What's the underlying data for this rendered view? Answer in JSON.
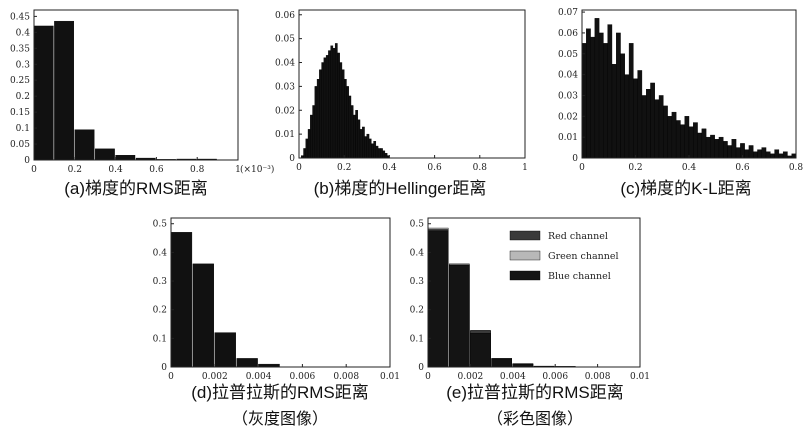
{
  "chart_data": [
    {
      "id": "a",
      "type": "bar",
      "caption": "(a)梯度的RMS距离",
      "x_ticks": [
        "0",
        "0.2",
        "0.4",
        "0.6",
        "0.8",
        "1"
      ],
      "y_ticks": [
        "0",
        "0.05",
        "0.1",
        "0.15",
        "0.2",
        "0.25",
        "0.3",
        "0.35",
        "0.4",
        "0.45"
      ],
      "x_exponent": "(×10⁻³)",
      "xlim": [
        0,
        1
      ],
      "ylim": [
        0,
        0.47
      ],
      "bin_width": 0.1,
      "bins": [
        0.05,
        0.15,
        0.25,
        0.35,
        0.45,
        0.55,
        0.65,
        0.75,
        0.85,
        0.95
      ],
      "values": [
        0.42,
        0.435,
        0.095,
        0.035,
        0.015,
        0.006,
        0.002,
        0.003,
        0.003,
        0.001
      ]
    },
    {
      "id": "b",
      "type": "bar",
      "caption": "(b)梯度的Hellinger距离",
      "x_ticks": [
        "0",
        "0.2",
        "0.4",
        "0.6",
        "0.8",
        "1"
      ],
      "y_ticks": [
        "0",
        "0.01",
        "0.02",
        "0.03",
        "0.04",
        "0.05",
        "0.06"
      ],
      "xlim": [
        0,
        1
      ],
      "ylim": [
        0,
        0.062
      ],
      "bin_width": 0.01,
      "bins": [
        0.015,
        0.025,
        0.035,
        0.045,
        0.055,
        0.065,
        0.075,
        0.085,
        0.095,
        0.105,
        0.115,
        0.125,
        0.135,
        0.145,
        0.155,
        0.165,
        0.175,
        0.185,
        0.195,
        0.205,
        0.215,
        0.225,
        0.235,
        0.245,
        0.255,
        0.265,
        0.275,
        0.285,
        0.295,
        0.305,
        0.315,
        0.325,
        0.335,
        0.345,
        0.355,
        0.365,
        0.375,
        0.385,
        0.395
      ],
      "values": [
        0.001,
        0.004,
        0.008,
        0.012,
        0.018,
        0.022,
        0.03,
        0.033,
        0.037,
        0.04,
        0.042,
        0.043,
        0.045,
        0.047,
        0.046,
        0.048,
        0.044,
        0.04,
        0.037,
        0.033,
        0.03,
        0.026,
        0.022,
        0.018,
        0.02,
        0.016,
        0.012,
        0.013,
        0.009,
        0.01,
        0.008,
        0.006,
        0.007,
        0.005,
        0.004,
        0.004,
        0.003,
        0.002,
        0.001
      ]
    },
    {
      "id": "c",
      "type": "bar",
      "caption": "(c)梯度的K-L距离",
      "x_ticks": [
        "0",
        "0.2",
        "0.4",
        "0.6",
        "0.8"
      ],
      "y_ticks": [
        "0",
        "0.01",
        "0.02",
        "0.03",
        "0.04",
        "0.05",
        "0.06",
        "0.07"
      ],
      "xlim": [
        0,
        0.8
      ],
      "ylim": [
        0,
        0.071
      ],
      "bin_width": 0.016,
      "bins": [
        0.008,
        0.024,
        0.04,
        0.056,
        0.072,
        0.088,
        0.104,
        0.12,
        0.136,
        0.152,
        0.168,
        0.184,
        0.2,
        0.216,
        0.232,
        0.248,
        0.264,
        0.28,
        0.296,
        0.312,
        0.328,
        0.344,
        0.36,
        0.376,
        0.392,
        0.408,
        0.424,
        0.44,
        0.456,
        0.472,
        0.488,
        0.504,
        0.52,
        0.536,
        0.552,
        0.568,
        0.584,
        0.6,
        0.616,
        0.632,
        0.648,
        0.664,
        0.68,
        0.696,
        0.712,
        0.728,
        0.744,
        0.76,
        0.776,
        0.792
      ],
      "values": [
        0.055,
        0.062,
        0.058,
        0.067,
        0.06,
        0.055,
        0.064,
        0.045,
        0.06,
        0.05,
        0.04,
        0.055,
        0.038,
        0.042,
        0.03,
        0.033,
        0.036,
        0.028,
        0.03,
        0.025,
        0.02,
        0.022,
        0.018,
        0.016,
        0.02,
        0.015,
        0.017,
        0.012,
        0.014,
        0.01,
        0.011,
        0.009,
        0.01,
        0.008,
        0.006,
        0.009,
        0.005,
        0.007,
        0.004,
        0.006,
        0.003,
        0.004,
        0.005,
        0.003,
        0.002,
        0.004,
        0.002,
        0.003,
        0.001,
        0.002
      ]
    },
    {
      "id": "d",
      "type": "bar",
      "caption": "(d)拉普拉斯的RMS距离",
      "caption2": "（灰度图像）",
      "x_ticks": [
        "0",
        "0.002",
        "0.004",
        "0.006",
        "0.008",
        "0.01"
      ],
      "y_ticks": [
        "0",
        "0.1",
        "0.2",
        "0.3",
        "0.4",
        "0.5"
      ],
      "xlim": [
        0,
        0.01
      ],
      "ylim": [
        0,
        0.52
      ],
      "bin_width": 0.001,
      "bins": [
        0.0005,
        0.0015,
        0.0025,
        0.0035,
        0.0045
      ],
      "values": [
        0.47,
        0.36,
        0.12,
        0.03,
        0.01
      ]
    },
    {
      "id": "e",
      "type": "bar",
      "caption": "(e)拉普拉斯的RMS距离",
      "caption2": "（彩色图像）",
      "x_ticks": [
        "0",
        "0.002",
        "0.004",
        "0.006",
        "0.008",
        "0.01"
      ],
      "y_ticks": [
        "0",
        "0.1",
        "0.2",
        "0.3",
        "0.4",
        "0.5"
      ],
      "xlim": [
        0,
        0.01
      ],
      "ylim": [
        0,
        0.52
      ],
      "bin_width": 0.001,
      "bins": [
        0.0005,
        0.0015,
        0.0025,
        0.0035,
        0.0045,
        0.0055,
        0.0065
      ],
      "legend_position": "top-right",
      "series": [
        {
          "name": "Red channel",
          "color": "#3a3a3a",
          "values": [
            0.48,
            0.357,
            0.128,
            0.03,
            0.011,
            0.003,
            0.002
          ]
        },
        {
          "name": "Green channel",
          "color": "#b8b8b8",
          "values": [
            0.485,
            0.36,
            0.125,
            0.03,
            0.012,
            0.003,
            0.002
          ]
        },
        {
          "name": "Blue channel",
          "color": "#141414",
          "values": [
            0.475,
            0.355,
            0.118,
            0.028,
            0.01,
            0.002,
            0.001
          ]
        }
      ]
    }
  ]
}
